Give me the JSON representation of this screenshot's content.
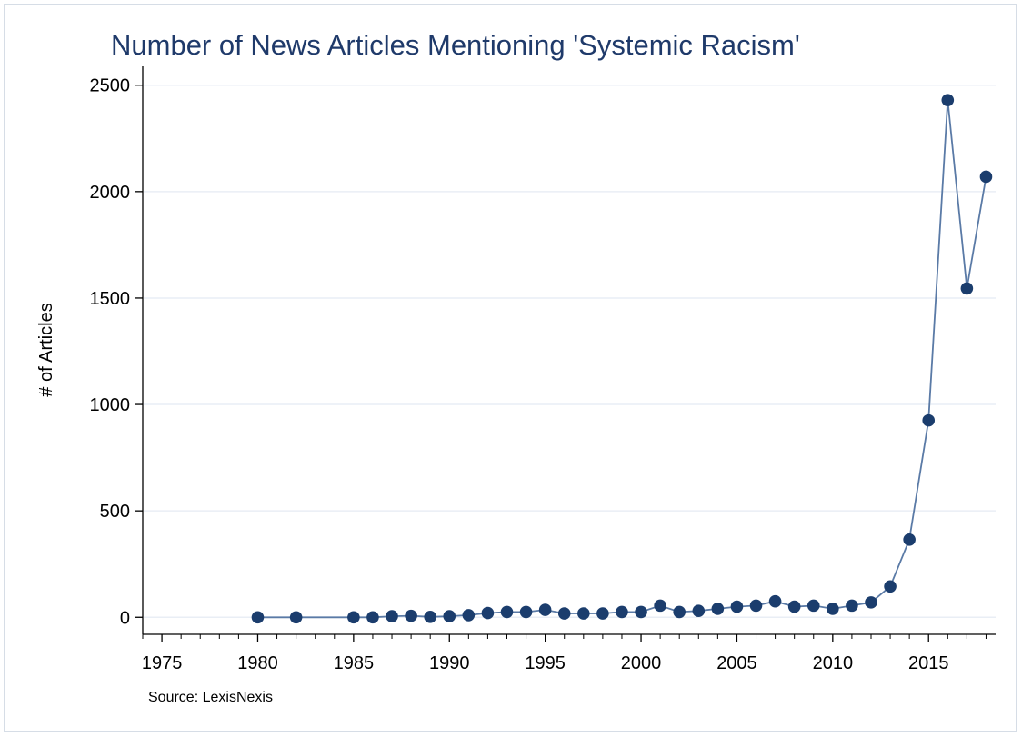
{
  "chart_data": {
    "type": "line",
    "title": "Number of News Articles Mentioning 'Systemic Racism'",
    "xlabel": "",
    "ylabel": "# of Articles",
    "note": "Source: LexisNexis",
    "xlim": [
      1974,
      2018.5
    ],
    "ylim": [
      -80,
      2580
    ],
    "xticks": [
      1975,
      1980,
      1985,
      1990,
      1995,
      2000,
      2005,
      2010,
      2015
    ],
    "yticks": [
      0,
      500,
      1000,
      1500,
      2000,
      2500
    ],
    "grid": true,
    "colors": {
      "title": "#1f3a6a",
      "series": "#1b3d6d",
      "line": "#5a7aa6",
      "grid": "#e9eef5",
      "axis": "#000000"
    },
    "series": [
      {
        "name": "Articles",
        "x": [
          1980,
          1982,
          1985,
          1986,
          1987,
          1988,
          1989,
          1990,
          1991,
          1992,
          1993,
          1994,
          1995,
          1996,
          1997,
          1998,
          1999,
          2000,
          2001,
          2002,
          2003,
          2004,
          2005,
          2006,
          2007,
          2008,
          2009,
          2010,
          2011,
          2012,
          2013,
          2014,
          2015,
          2016,
          2017,
          2018
        ],
        "y": [
          0,
          0,
          0,
          0,
          5,
          7,
          2,
          5,
          10,
          20,
          25,
          25,
          35,
          18,
          18,
          18,
          25,
          25,
          55,
          25,
          30,
          40,
          50,
          55,
          75,
          50,
          55,
          40,
          55,
          70,
          145,
          365,
          925,
          2430,
          1545,
          2070
        ]
      }
    ]
  }
}
